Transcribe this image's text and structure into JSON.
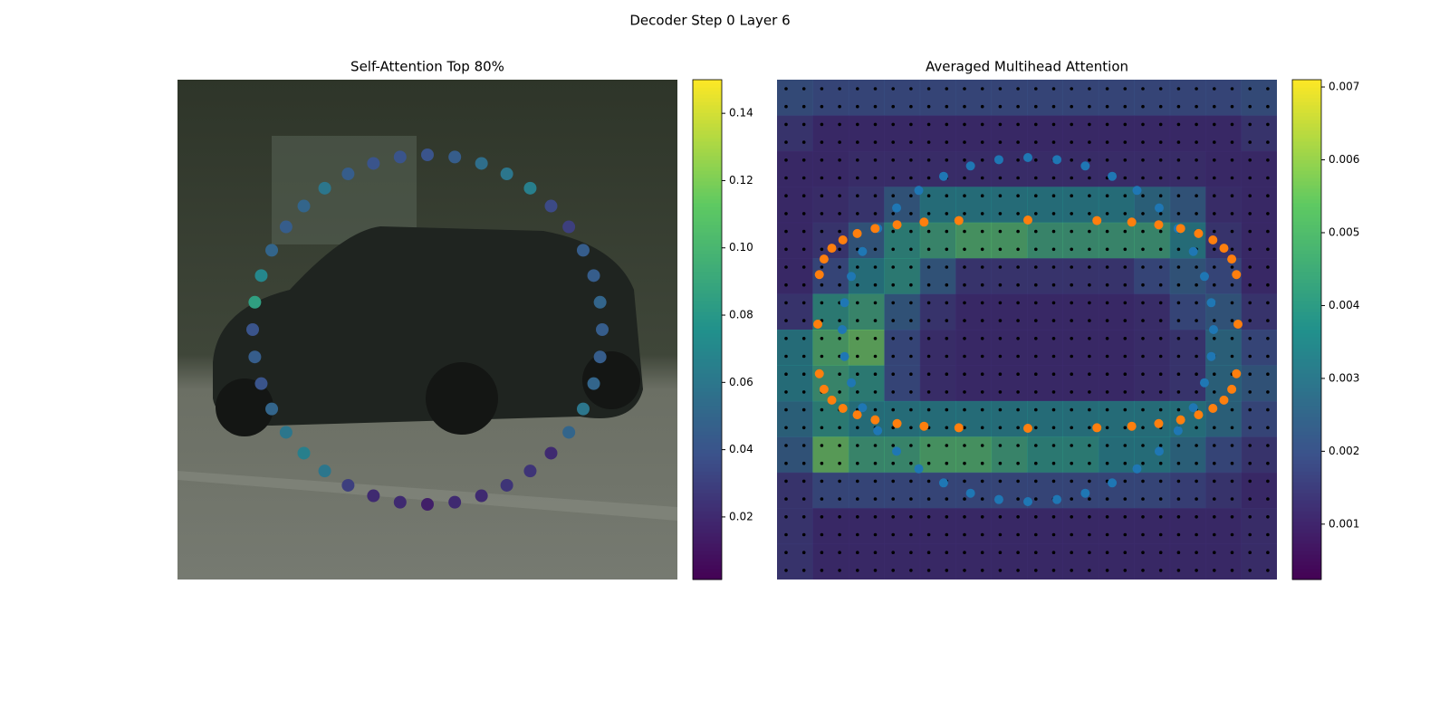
{
  "title": "Decoder Step 0 Layer 6",
  "chart_data": [
    {
      "type": "point-ring",
      "title": "Self-Attention Top 80%",
      "values": [
        0.04,
        0.045,
        0.055,
        0.06,
        0.065,
        0.035,
        0.03,
        0.045,
        0.045,
        0.05,
        0.045,
        0.045,
        0.05,
        0.06,
        0.05,
        0.02,
        0.025,
        0.025,
        0.02,
        0.02,
        0.015,
        0.02,
        0.02,
        0.03,
        0.06,
        0.065,
        0.06,
        0.05,
        0.04,
        0.045,
        0.04,
        0.085,
        0.07,
        0.05,
        0.045,
        0.05,
        0.06,
        0.045,
        0.04,
        0.04
      ],
      "clim": [
        0.0014,
        0.15
      ],
      "cticks": [
        0.02,
        0.04,
        0.06,
        0.08,
        {
          "value": 0.1,
          "label": "0.10"
        },
        0.12,
        0.14
      ],
      "colormap": "viridis"
    },
    {
      "type": "heatmap",
      "title": "Averaged Multihead Attention",
      "values": [
        [
          0.0022,
          0.002,
          0.002,
          0.002,
          0.002,
          0.002,
          0.002,
          0.002,
          0.002,
          0.002,
          0.002,
          0.002,
          0.002,
          0.0022
        ],
        [
          0.0015,
          0.0012,
          0.0012,
          0.0012,
          0.0012,
          0.0012,
          0.0012,
          0.0012,
          0.0012,
          0.0012,
          0.0012,
          0.0012,
          0.0012,
          0.0015
        ],
        [
          0.0012,
          0.0012,
          0.0013,
          0.0013,
          0.0013,
          0.0013,
          0.0013,
          0.0013,
          0.0013,
          0.0013,
          0.0013,
          0.0013,
          0.0012,
          0.0012
        ],
        [
          0.0012,
          0.0013,
          0.0015,
          0.0025,
          0.0035,
          0.0035,
          0.0035,
          0.0035,
          0.0035,
          0.0035,
          0.003,
          0.0025,
          0.0013,
          0.0012
        ],
        [
          0.0012,
          0.0015,
          0.0025,
          0.004,
          0.0045,
          0.005,
          0.005,
          0.0045,
          0.0045,
          0.0045,
          0.0045,
          0.0035,
          0.0015,
          0.0012
        ],
        [
          0.0012,
          0.002,
          0.0035,
          0.004,
          0.0025,
          0.0015,
          0.0015,
          0.0015,
          0.0015,
          0.0015,
          0.002,
          0.0025,
          0.002,
          0.0012
        ],
        [
          0.0015,
          0.004,
          0.0045,
          0.0025,
          0.0015,
          0.0012,
          0.0012,
          0.0012,
          0.0012,
          0.0012,
          0.0013,
          0.002,
          0.0025,
          0.0015
        ],
        [
          0.0035,
          0.005,
          0.0055,
          0.002,
          0.0013,
          0.0012,
          0.0012,
          0.0012,
          0.0012,
          0.0012,
          0.0013,
          0.0015,
          0.003,
          0.002
        ],
        [
          0.0035,
          0.0045,
          0.004,
          0.002,
          0.0013,
          0.0012,
          0.0012,
          0.0012,
          0.0012,
          0.0012,
          0.0013,
          0.0015,
          0.003,
          0.0025
        ],
        [
          0.003,
          0.004,
          0.0035,
          0.0035,
          0.0035,
          0.0035,
          0.0035,
          0.0035,
          0.0035,
          0.0035,
          0.0035,
          0.0035,
          0.003,
          0.002
        ],
        [
          0.0025,
          0.0055,
          0.0045,
          0.0045,
          0.005,
          0.005,
          0.0045,
          0.004,
          0.004,
          0.0035,
          0.0035,
          0.003,
          0.002,
          0.0015
        ],
        [
          0.0015,
          0.002,
          0.002,
          0.002,
          0.002,
          0.002,
          0.002,
          0.002,
          0.002,
          0.002,
          0.002,
          0.0018,
          0.0015,
          0.0012
        ],
        [
          0.0015,
          0.0012,
          0.0012,
          0.0012,
          0.0012,
          0.0012,
          0.0012,
          0.0012,
          0.0012,
          0.0012,
          0.0012,
          0.0012,
          0.0012,
          0.0013
        ],
        [
          0.0015,
          0.0012,
          0.0012,
          0.0012,
          0.0012,
          0.0012,
          0.0012,
          0.0012,
          0.0012,
          0.0012,
          0.0012,
          0.0012,
          0.0012,
          0.0013
        ]
      ],
      "clim": [
        0.00024,
        0.0071
      ],
      "cticks": [
        0.001,
        0.002,
        0.003,
        0.004,
        0.005,
        0.006,
        0.007
      ],
      "colormap": "viridis"
    }
  ]
}
